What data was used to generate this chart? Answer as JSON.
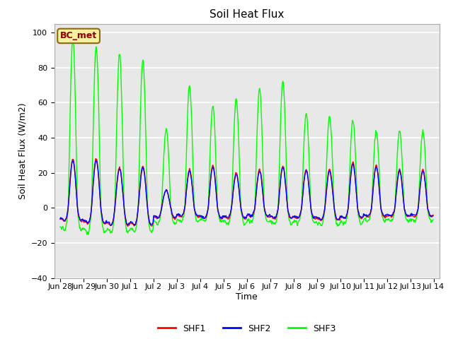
{
  "title": "Soil Heat Flux",
  "xlabel": "Time",
  "ylabel": "Soil Heat Flux (W/m2)",
  "ylim": [
    -40,
    105
  ],
  "yticks": [
    -40,
    -20,
    0,
    20,
    40,
    60,
    80,
    100
  ],
  "annotation_text": "BC_met",
  "annotation_color": "#8B0000",
  "annotation_bg": "#F5F0A0",
  "shf1_color": "red",
  "shf2_color": "blue",
  "shf3_color": "lime",
  "legend_labels": [
    "SHF1",
    "SHF2",
    "SHF3"
  ],
  "bg_color": "#E8E8E8",
  "grid_color": "white",
  "shf3_day_peaks": [
    97,
    92,
    88,
    84,
    45,
    70,
    58,
    62,
    68,
    72,
    54,
    52,
    50,
    44,
    44,
    44
  ],
  "shf1_day_peaks": [
    28,
    28,
    23,
    24,
    10,
    22,
    24,
    20,
    22,
    24,
    22,
    22,
    26,
    24,
    22,
    22
  ],
  "shf2_day_peaks": [
    27,
    27,
    22,
    23,
    10,
    21,
    23,
    19,
    21,
    23,
    21,
    21,
    25,
    23,
    21,
    21
  ],
  "shf3_night_min": [
    -25,
    -28,
    -28,
    -27,
    -18,
    -15,
    -15,
    -18,
    -16,
    -18,
    -17,
    -20,
    -18,
    -15,
    -15,
    -15
  ],
  "shf1_night_min": [
    -15,
    -18,
    -20,
    -20,
    -12,
    -10,
    -12,
    -12,
    -10,
    -12,
    -12,
    -14,
    -12,
    -10,
    -10,
    -10
  ],
  "shf2_night_min": [
    -14,
    -17,
    -19,
    -19,
    -11,
    -9,
    -11,
    -11,
    -9,
    -11,
    -11,
    -13,
    -11,
    -9,
    -9,
    -9
  ]
}
